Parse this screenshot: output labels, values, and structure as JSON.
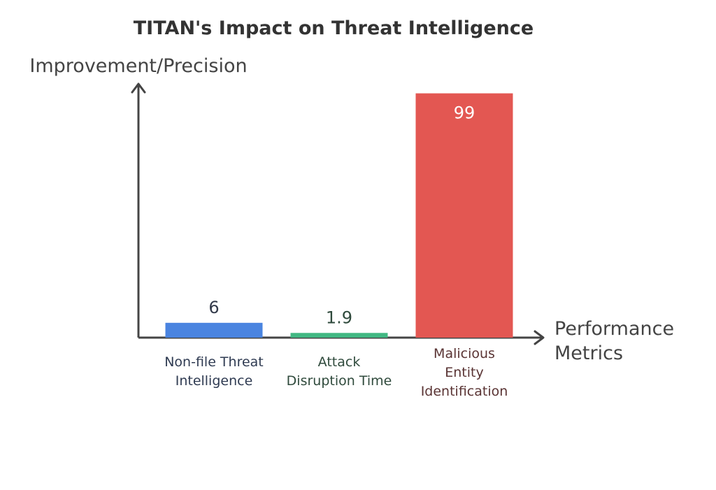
{
  "chart_data": {
    "type": "bar",
    "title": "TITAN's Impact on Threat Intelligence",
    "ylabel": "Improvement/Precision",
    "xlabel": [
      "Performance",
      "Metrics"
    ],
    "categories": [
      [
        "Non-file Threat",
        "Intelligence"
      ],
      [
        "Attack",
        "Disruption Time"
      ],
      [
        "Malicious",
        "Entity",
        "Identification"
      ]
    ],
    "values": [
      6,
      1.9,
      99
    ],
    "value_labels": [
      "6",
      "1.9",
      "99"
    ],
    "ylim": [
      0,
      100
    ],
    "grid": false,
    "legend": "none",
    "colors": {
      "bars": [
        "#4a84e0",
        "#41b883",
        "#e35752"
      ],
      "value_labels": [
        "#333a4a",
        "#2f4a3c",
        "#ffffff"
      ],
      "category_labels": [
        "#2f3b52",
        "#2f4a3c",
        "#5a3434"
      ],
      "axis": "#444444"
    }
  }
}
